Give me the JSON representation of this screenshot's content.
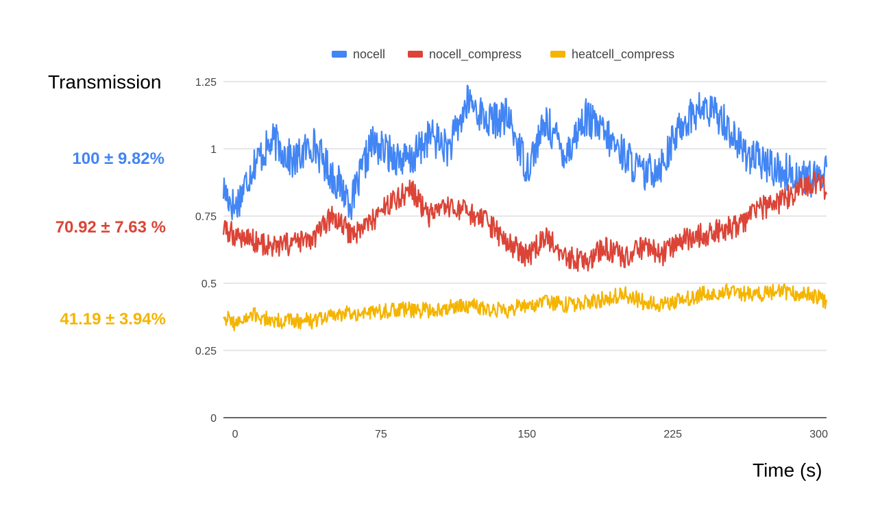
{
  "annotations": {
    "ylabel": "Transmission",
    "xlabel": "Time (s)",
    "stats": [
      {
        "text": "100 ± 9.82%",
        "color": "#4285F4"
      },
      {
        "text": "70.92 ± 7.63 %",
        "color": "#DB4437"
      },
      {
        "text": "41.19 ± 3.94%",
        "color": "#F4B400"
      }
    ]
  },
  "chart_data": {
    "type": "line",
    "title": "",
    "xlabel": "Time (s)",
    "ylabel": "Transmission",
    "xlim": [
      -6,
      304
    ],
    "ylim": [
      0,
      1.25
    ],
    "xticks": [
      "0",
      "75",
      "150",
      "225",
      "300"
    ],
    "xtick_values": [
      0,
      75,
      150,
      225,
      300
    ],
    "yticks": [
      "0",
      "0.25",
      "0.5",
      "0.75",
      "1",
      "1.25"
    ],
    "ytick_values": [
      0,
      0.25,
      0.5,
      0.75,
      1,
      1.25
    ],
    "grid": true,
    "legend_position": "top",
    "x": [
      -6,
      0,
      10,
      20,
      30,
      40,
      50,
      60,
      70,
      80,
      90,
      100,
      110,
      120,
      130,
      140,
      150,
      160,
      170,
      180,
      190,
      200,
      210,
      220,
      230,
      240,
      250,
      260,
      270,
      280,
      290,
      300,
      304
    ],
    "series": [
      {
        "name": "nocell",
        "color": "#4285F4",
        "values": [
          0.85,
          0.78,
          0.95,
          1.03,
          0.95,
          1.02,
          0.9,
          0.8,
          1.02,
          0.98,
          0.95,
          1.05,
          1.0,
          1.18,
          1.1,
          1.12,
          0.93,
          1.1,
          0.98,
          1.12,
          1.05,
          0.98,
          0.9,
          0.95,
          1.1,
          1.15,
          1.12,
          1.0,
          0.95,
          0.92,
          0.9,
          0.88,
          0.95
        ]
      },
      {
        "name": "nocell_compress",
        "color": "#DB4437",
        "values": [
          0.7,
          0.68,
          0.66,
          0.63,
          0.65,
          0.66,
          0.75,
          0.68,
          0.73,
          0.8,
          0.85,
          0.75,
          0.78,
          0.76,
          0.72,
          0.65,
          0.6,
          0.67,
          0.6,
          0.58,
          0.63,
          0.6,
          0.63,
          0.61,
          0.66,
          0.68,
          0.7,
          0.72,
          0.78,
          0.8,
          0.85,
          0.88,
          0.83
        ]
      },
      {
        "name": "heatcell_compress",
        "color": "#F4B400",
        "values": [
          0.38,
          0.35,
          0.38,
          0.36,
          0.36,
          0.36,
          0.38,
          0.39,
          0.39,
          0.4,
          0.4,
          0.4,
          0.41,
          0.42,
          0.4,
          0.4,
          0.42,
          0.43,
          0.42,
          0.43,
          0.44,
          0.46,
          0.43,
          0.42,
          0.44,
          0.46,
          0.47,
          0.46,
          0.46,
          0.47,
          0.46,
          0.45,
          0.43
        ]
      }
    ]
  }
}
